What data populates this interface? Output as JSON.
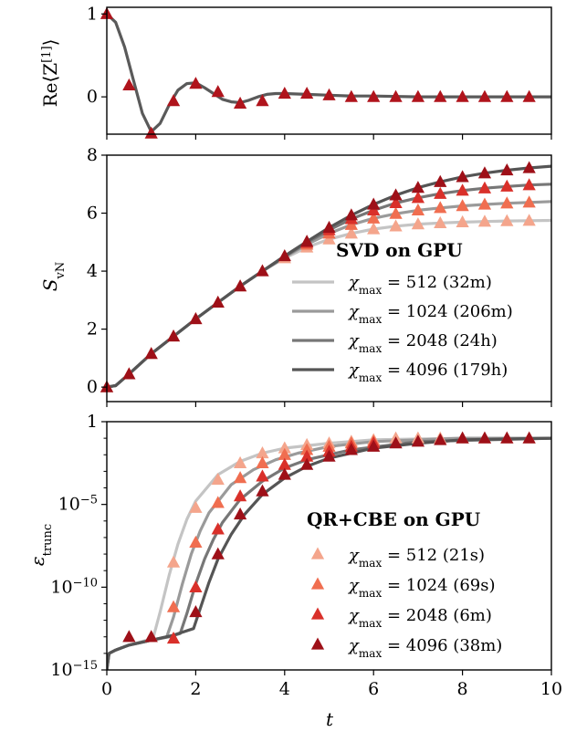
{
  "chart_data": [
    {
      "type": "line",
      "panel": "top",
      "ylabel": "Re⟨Z[1]⟩",
      "xlim": [
        0,
        10
      ],
      "ylim": [
        -0.45,
        1.08
      ],
      "yticks": [
        1,
        0
      ],
      "ytick_labels": [
        "1",
        "0"
      ],
      "line": {
        "color": "#5a5a5a",
        "x": [
          0,
          0.2,
          0.4,
          0.6,
          0.8,
          1.0,
          1.2,
          1.4,
          1.6,
          1.8,
          2.0,
          2.2,
          2.4,
          2.6,
          2.8,
          3.0,
          3.2,
          3.4,
          3.6,
          3.8,
          4.0,
          4.5,
          5.0,
          5.5,
          6.0,
          7.0,
          8.0,
          9.0,
          10.0
        ],
        "y": [
          1.0,
          0.9,
          0.6,
          0.2,
          -0.2,
          -0.42,
          -0.32,
          -0.1,
          0.08,
          0.16,
          0.17,
          0.11,
          0.04,
          -0.03,
          -0.06,
          -0.07,
          -0.04,
          0.0,
          0.03,
          0.04,
          0.04,
          0.03,
          0.02,
          0.01,
          0.01,
          0.0,
          0.0,
          0.0,
          0.0
        ]
      },
      "markers": {
        "color": "#b0141c",
        "x": [
          0,
          0.5,
          1.0,
          1.5,
          2.0,
          2.5,
          3.0,
          3.5,
          4.0,
          4.5,
          5.0,
          5.5,
          6.0,
          6.5,
          7.0,
          7.5,
          8.0,
          8.5,
          9.0,
          9.5
        ],
        "y": [
          1.0,
          0.14,
          -0.44,
          -0.05,
          0.16,
          0.06,
          -0.08,
          -0.05,
          0.04,
          0.04,
          0.02,
          0.0,
          0.0,
          0.0,
          0.0,
          0.0,
          0.0,
          0.0,
          0.0,
          0.0
        ]
      }
    },
    {
      "type": "line",
      "panel": "middle",
      "ylabel": "SvN",
      "xlim": [
        0,
        10
      ],
      "ylim": [
        -0.5,
        8
      ],
      "yticks": [
        0,
        2,
        4,
        6,
        8
      ],
      "ytick_labels": [
        "0",
        "2",
        "4",
        "6",
        "8"
      ],
      "legend_title": "SVD on GPU",
      "legend_position": "lower-right",
      "lines": [
        {
          "name": "512",
          "label": "χmax = 512 (32m)",
          "color": "#c4c4c4",
          "x": [
            0,
            0.2,
            0.5,
            1,
            1.5,
            2,
            2.5,
            3,
            3.5,
            4,
            4.5,
            5,
            5.5,
            6,
            6.5,
            7,
            7.5,
            8,
            8.5,
            9,
            9.5,
            10
          ],
          "y": [
            0,
            0.05,
            0.45,
            1.15,
            1.75,
            2.35,
            2.92,
            3.48,
            4.0,
            4.45,
            4.82,
            5.1,
            5.3,
            5.45,
            5.55,
            5.62,
            5.66,
            5.69,
            5.71,
            5.73,
            5.74,
            5.75
          ]
        },
        {
          "name": "1024",
          "label": "χmax = 1024 (206m)",
          "color": "#9a9a9a",
          "x": [
            0,
            0.2,
            0.5,
            1,
            1.5,
            2,
            2.5,
            3,
            3.5,
            4,
            4.5,
            5,
            5.5,
            6,
            6.5,
            7,
            7.5,
            8,
            8.5,
            9,
            9.5,
            10
          ],
          "y": [
            0,
            0.05,
            0.45,
            1.15,
            1.75,
            2.35,
            2.92,
            3.48,
            4.0,
            4.48,
            4.92,
            5.3,
            5.6,
            5.82,
            5.98,
            6.1,
            6.18,
            6.25,
            6.3,
            6.34,
            6.37,
            6.4
          ]
        },
        {
          "name": "2048",
          "label": "χmax = 2048 (24h)",
          "color": "#777777",
          "x": [
            0,
            0.2,
            0.5,
            1,
            1.5,
            2,
            2.5,
            3,
            3.5,
            4,
            4.5,
            5,
            5.5,
            6,
            6.5,
            7,
            7.5,
            8,
            8.5,
            9,
            9.5,
            10
          ],
          "y": [
            0,
            0.05,
            0.45,
            1.15,
            1.75,
            2.35,
            2.92,
            3.48,
            4.0,
            4.5,
            4.98,
            5.42,
            5.8,
            6.1,
            6.35,
            6.53,
            6.67,
            6.78,
            6.86,
            6.92,
            6.97,
            7.0
          ]
        },
        {
          "name": "4096",
          "label": "χmax = 4096 (179h)",
          "color": "#555555",
          "x": [
            0,
            0.2,
            0.5,
            1,
            1.5,
            2,
            2.5,
            3,
            3.5,
            4,
            4.5,
            5,
            5.5,
            6,
            6.5,
            7,
            7.5,
            8,
            8.5,
            9,
            9.5,
            10
          ],
          "y": [
            0,
            0.05,
            0.45,
            1.15,
            1.75,
            2.35,
            2.92,
            3.48,
            4.0,
            4.52,
            5.02,
            5.5,
            5.93,
            6.3,
            6.62,
            6.88,
            7.08,
            7.25,
            7.38,
            7.48,
            7.56,
            7.62
          ]
        }
      ],
      "markers": [
        {
          "name": "512",
          "color": "#f4a58c",
          "x": [
            0,
            0.5,
            1,
            1.5,
            2,
            2.5,
            3,
            3.5,
            4,
            4.5,
            5,
            5.5,
            6,
            6.5,
            7,
            7.5,
            8,
            8.5,
            9,
            9.5
          ],
          "y": [
            0,
            0.45,
            1.15,
            1.75,
            2.35,
            2.92,
            3.48,
            4.0,
            4.45,
            4.82,
            5.1,
            5.3,
            5.45,
            5.55,
            5.62,
            5.66,
            5.69,
            5.71,
            5.73,
            5.74
          ]
        },
        {
          "name": "1024",
          "color": "#f06e50",
          "x": [
            4.5,
            5,
            5.5,
            6,
            6.5,
            7,
            7.5,
            8,
            8.5,
            9,
            9.5
          ],
          "y": [
            4.92,
            5.3,
            5.6,
            5.82,
            5.98,
            6.1,
            6.18,
            6.25,
            6.3,
            6.34,
            6.37
          ]
        },
        {
          "name": "2048",
          "color": "#d9302a",
          "x": [
            4.5,
            5,
            5.5,
            6,
            6.5,
            7,
            7.5,
            8,
            8.5,
            9,
            9.5
          ],
          "y": [
            4.98,
            5.42,
            5.8,
            6.1,
            6.35,
            6.53,
            6.67,
            6.78,
            6.86,
            6.92,
            6.97
          ]
        },
        {
          "name": "4096",
          "color": "#9e1018",
          "x": [
            0,
            0.5,
            1,
            1.5,
            2,
            2.5,
            3,
            3.5,
            4,
            4.5,
            5,
            5.5,
            6,
            6.5,
            7,
            7.5,
            8,
            8.5,
            9,
            9.5
          ],
          "y": [
            0,
            0.45,
            1.15,
            1.75,
            2.35,
            2.92,
            3.48,
            4.0,
            4.52,
            5.02,
            5.5,
            5.93,
            6.3,
            6.62,
            6.88,
            7.08,
            7.25,
            7.38,
            7.48,
            7.56
          ]
        }
      ]
    },
    {
      "type": "line",
      "panel": "bottom",
      "ylabel": "εtrunc",
      "xlabel": "t",
      "yscale": "log",
      "xlim": [
        0,
        10
      ],
      "ylim_log10": [
        -15,
        0
      ],
      "yticks_log10": [
        0,
        -5,
        -10,
        -15
      ],
      "ytick_labels": [
        "1",
        "10−5",
        "10−10",
        "10−15"
      ],
      "xticks": [
        0,
        2,
        4,
        6,
        8,
        10
      ],
      "xtick_labels": [
        "0",
        "2",
        "4",
        "6",
        "8",
        "10"
      ],
      "legend_title": "QR+CBE on GPU",
      "legend_position": "lower-right",
      "lines": [
        {
          "name": "512",
          "color": "#c4c4c4",
          "x": [
            0,
            0.05,
            0.2,
            0.5,
            0.9,
            1.05,
            1.2,
            1.4,
            1.6,
            1.8,
            2.0,
            2.5,
            3.0,
            3.5,
            4.0,
            5.0,
            6.0,
            8.0,
            10.0
          ],
          "y_log10": [
            -15,
            -14,
            -13.8,
            -13.5,
            -13.2,
            -13.0,
            -11.5,
            -9.3,
            -7.4,
            -5.9,
            -4.8,
            -3.2,
            -2.4,
            -1.9,
            -1.6,
            -1.3,
            -1.1,
            -1.0,
            -1.0
          ]
        },
        {
          "name": "1024",
          "color": "#9a9a9a",
          "x": [
            0,
            0.05,
            0.2,
            0.5,
            1.0,
            1.35,
            1.5,
            1.7,
            1.9,
            2.1,
            2.3,
            2.8,
            3.3,
            3.8,
            4.3,
            5.0,
            6.0,
            8.0,
            10.0
          ],
          "y_log10": [
            -15,
            -14,
            -13.8,
            -13.5,
            -13.2,
            -13.0,
            -11.8,
            -9.8,
            -8.0,
            -6.6,
            -5.5,
            -3.8,
            -2.9,
            -2.3,
            -1.9,
            -1.5,
            -1.2,
            -1.0,
            -1.0
          ]
        },
        {
          "name": "2048",
          "color": "#777777",
          "x": [
            0,
            0.05,
            0.2,
            0.5,
            1.0,
            1.4,
            1.65,
            1.8,
            2.0,
            2.2,
            2.4,
            2.6,
            3.0,
            3.5,
            4.0,
            4.5,
            5.5,
            7.0,
            10.0
          ],
          "y_log10": [
            -15,
            -14,
            -13.8,
            -13.5,
            -13.2,
            -13.0,
            -12.8,
            -11.6,
            -9.8,
            -8.3,
            -7.1,
            -6.1,
            -4.7,
            -3.6,
            -2.8,
            -2.3,
            -1.7,
            -1.2,
            -1.0
          ]
        },
        {
          "name": "4096",
          "color": "#555555",
          "x": [
            0,
            0.05,
            0.2,
            0.5,
            1.0,
            1.5,
            1.95,
            2.1,
            2.3,
            2.5,
            2.8,
            3.1,
            3.5,
            4.0,
            4.5,
            5.0,
            6.0,
            7.0,
            8.0,
            10.0
          ],
          "y_log10": [
            -15,
            -14,
            -13.8,
            -13.5,
            -13.2,
            -12.9,
            -12.5,
            -11.3,
            -9.7,
            -8.3,
            -6.8,
            -5.6,
            -4.4,
            -3.4,
            -2.7,
            -2.2,
            -1.6,
            -1.3,
            -1.1,
            -1.0
          ]
        }
      ],
      "markers": [
        {
          "name": "512",
          "label": "χmax = 512 (21s)",
          "color": "#f4a58c",
          "x": [
            1,
            1.5,
            2,
            2.5,
            3,
            3.5,
            4,
            4.5,
            5,
            5.5,
            6,
            6.5,
            7,
            7.5,
            8,
            8.5,
            9,
            9.5
          ],
          "y_log10": [
            -13.0,
            -8.5,
            -5.2,
            -3.5,
            -2.5,
            -1.9,
            -1.6,
            -1.4,
            -1.3,
            -1.2,
            -1.1,
            -1.0,
            -1.0,
            -1.0,
            -1.0,
            -1.0,
            -1.0,
            -1.0
          ]
        },
        {
          "name": "1024",
          "label": "χmax = 1024 (69s)",
          "color": "#f06e50",
          "x": [
            1.5,
            2,
            2.5,
            3,
            3.5,
            4,
            4.5,
            5,
            5.5,
            6
          ],
          "y_log10": [
            -11.2,
            -7.3,
            -4.9,
            -3.4,
            -2.5,
            -2.0,
            -1.7,
            -1.5,
            -1.3,
            -1.2
          ]
        },
        {
          "name": "2048",
          "label": "χmax = 2048 (6m)",
          "color": "#d9302a",
          "x": [
            1.5,
            2,
            2.5,
            3,
            3.5,
            4,
            4.5,
            5,
            5.5,
            6
          ],
          "y_log10": [
            -13.1,
            -10.0,
            -6.5,
            -4.5,
            -3.3,
            -2.6,
            -2.1,
            -1.8,
            -1.5,
            -1.3
          ]
        },
        {
          "name": "4096",
          "label": "χmax = 4096 (38m)",
          "color": "#9e1018",
          "x": [
            0.5,
            1.0,
            2.0,
            2.5,
            3.0,
            3.5,
            4.0,
            4.5,
            5.0,
            5.5,
            6.0,
            6.5,
            7.0,
            7.5,
            8.0,
            8.5,
            9.0,
            9.5
          ],
          "y_log10": [
            -13.0,
            -13.0,
            -11.5,
            -8.0,
            -5.6,
            -4.2,
            -3.2,
            -2.6,
            -2.1,
            -1.7,
            -1.5,
            -1.3,
            -1.2,
            -1.1,
            -1.0,
            -1.0,
            -1.0,
            -1.0
          ]
        }
      ]
    }
  ]
}
